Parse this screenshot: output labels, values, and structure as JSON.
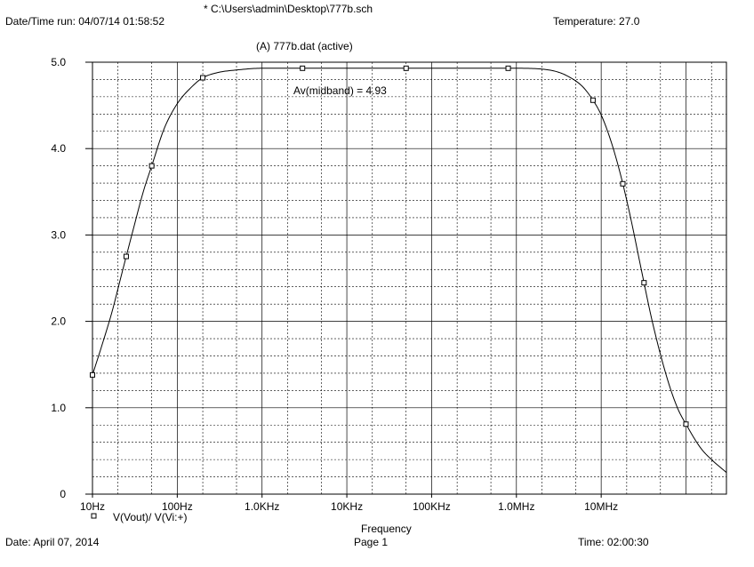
{
  "header": {
    "schematic": "* C:\\Users\\admin\\Desktop\\777b.sch",
    "datetime_run": "Date/Time run: 04/07/14 01:58:52",
    "temperature": "Temperature: 27.0"
  },
  "footer": {
    "date": "Date: April 07, 2014",
    "page": "Page 1",
    "time": "Time: 02:00:30"
  },
  "chart_data": {
    "type": "line",
    "title": "(A) 777b.dat (active)",
    "xlabel": "Frequency",
    "ylabel": "",
    "x_scale": "log",
    "xlim": [
      10,
      300000000
    ],
    "ylim": [
      0,
      5.0
    ],
    "x_ticks": [
      {
        "value": 10,
        "label": "10Hz"
      },
      {
        "value": 100,
        "label": "100Hz"
      },
      {
        "value": 1000,
        "label": "1.0KHz"
      },
      {
        "value": 10000,
        "label": "10KHz"
      },
      {
        "value": 100000,
        "label": "100KHz"
      },
      {
        "value": 1000000,
        "label": "1.0MHz"
      },
      {
        "value": 10000000,
        "label": "10MHz"
      }
    ],
    "y_ticks": [
      {
        "value": 0,
        "label": "0"
      },
      {
        "value": 1.0,
        "label": "1.0"
      },
      {
        "value": 2.0,
        "label": "2.0"
      },
      {
        "value": 3.0,
        "label": "3.0"
      },
      {
        "value": 4.0,
        "label": "4.0"
      },
      {
        "value": 5.0,
        "label": "5.0"
      }
    ],
    "grid": true,
    "legend_position": "bottom-left",
    "annotation": "Av(midband) = 4.93",
    "series": [
      {
        "name": "V(Vout)/ V(Vi:+)",
        "marker": "square",
        "x": [
          10,
          13,
          17,
          22,
          30,
          40,
          50,
          70,
          100,
          150,
          200,
          300,
          500,
          1000,
          3000,
          10000,
          100000,
          1000000,
          2000000,
          3000000,
          4000000,
          6000000,
          8000000,
          10000000,
          13000000,
          17000000,
          22000000,
          30000000,
          40000000,
          60000000,
          80000000,
          100000000,
          150000000,
          200000000,
          300000000
        ],
        "y": [
          1.38,
          1.73,
          2.11,
          2.54,
          3.05,
          3.51,
          3.8,
          4.23,
          4.52,
          4.72,
          4.82,
          4.88,
          4.91,
          4.93,
          4.93,
          4.93,
          4.93,
          4.93,
          4.92,
          4.89,
          4.84,
          4.72,
          4.56,
          4.39,
          4.09,
          3.69,
          3.22,
          2.58,
          2.0,
          1.34,
          0.99,
          0.81,
          0.53,
          0.4,
          0.25
        ]
      }
    ],
    "markers_x": [
      10,
      25,
      50,
      200,
      3000,
      50000,
      800000,
      8000000,
      18000000,
      32000000,
      100000000
    ]
  }
}
